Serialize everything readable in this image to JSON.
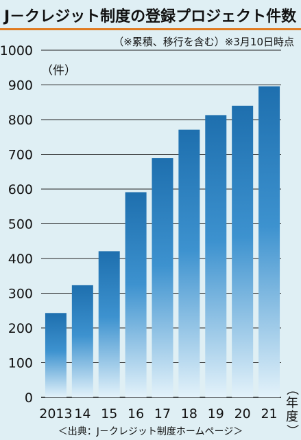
{
  "title": "J－クレジット制度の登録プロジェクト件数",
  "note": "（※累積、移行を含む）※3月10日時点",
  "source": "＜出典：J－クレジット制度ホームページ＞",
  "colors": {
    "accent_rule": "#e07a1f",
    "bar_top": "#1e6fae",
    "bar_bottom": "#dff0f9",
    "background": "#dfeff4"
  },
  "chart_data": {
    "type": "bar",
    "categories": [
      "2013",
      "14",
      "15",
      "16",
      "17",
      "18",
      "19",
      "20",
      "21"
    ],
    "values": [
      243,
      323,
      421,
      591,
      689,
      771,
      813,
      840,
      896
    ],
    "ylim": [
      0,
      1000
    ],
    "yticks": [
      0,
      100,
      200,
      300,
      400,
      500,
      600,
      700,
      800,
      900,
      1000
    ],
    "ylabel": "（件）",
    "xlabel": "（年度）",
    "grid": true
  }
}
